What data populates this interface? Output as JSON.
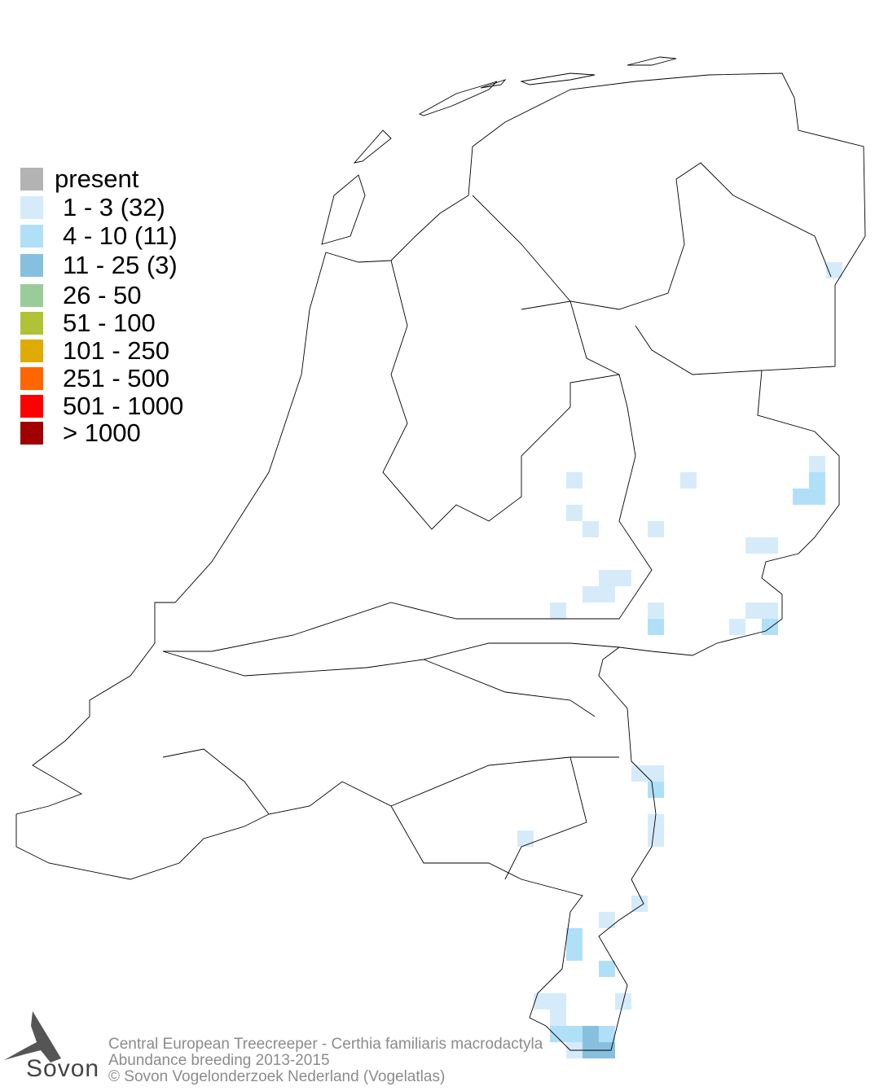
{
  "legend": {
    "items": [
      {
        "label": "present",
        "color": "#b3b3b3"
      },
      {
        "label": "1 - 3 (32)",
        "color": "#d6ebfa"
      },
      {
        "label": "4 - 10 (11)",
        "color": "#b0e0f8"
      },
      {
        "label": "11 - 25 (3)",
        "color": "#87c0de"
      },
      {
        "label": "26 - 50",
        "color": "#99cc99"
      },
      {
        "label": "51 - 100",
        "color": "#b0c236"
      },
      {
        "label": "101 - 250",
        "color": "#e0ab00"
      },
      {
        "label": "251 - 500",
        "color": "#ff6600"
      },
      {
        "label": "501 - 1000",
        "color": "#ff0000"
      },
      {
        "label": "> 1000",
        "color": "#a00000"
      }
    ]
  },
  "caption": {
    "species": "Central European Treecreeper - Certhia familiaris macrodactyla",
    "subtitle": "Abundance breeding 2013-2015",
    "copyright": "© Sovon Vogelonderzoek Nederland (Vogelatlas)"
  },
  "logo": {
    "text": "Sovon"
  }
}
